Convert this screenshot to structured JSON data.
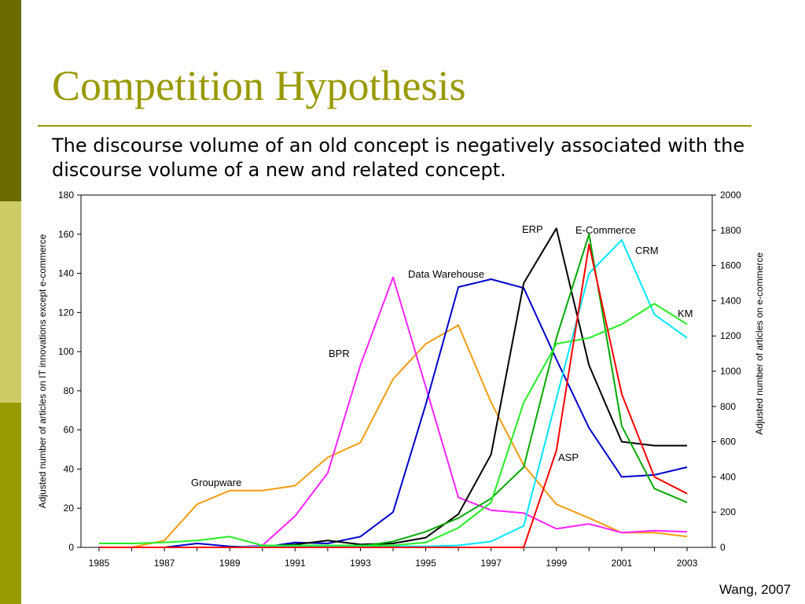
{
  "slide": {
    "title": "Competition Hypothesis",
    "text": "The discourse volume of an old concept is negatively associated with the discourse volume of a new and related concept.",
    "citation": "Wang, 2007"
  },
  "colors": {
    "accent": "#999900",
    "stripe_dark": "#6b6b00",
    "stripe_light": "#cccc66"
  },
  "chart_data": {
    "type": "line",
    "x": [
      1985,
      1986,
      1987,
      1988,
      1989,
      1990,
      1991,
      1992,
      1993,
      1994,
      1995,
      1996,
      1997,
      1998,
      1999,
      2000,
      2001,
      2002,
      2003
    ],
    "x_tick_labels": [
      "1985",
      "1987",
      "1989",
      "1991",
      "1993",
      "1995",
      "1997",
      "1999",
      "2001",
      "2003"
    ],
    "ylabel": "Adjusted number of articles on IT innovations except e-commerce",
    "y2label": "Adjusted number of articles on e-commerce",
    "ylim": [
      0,
      180
    ],
    "y_ticks": [
      0,
      20,
      40,
      60,
      80,
      100,
      120,
      140,
      160,
      180
    ],
    "y2lim": [
      0,
      2000
    ],
    "y2_ticks": [
      0,
      200,
      400,
      600,
      800,
      1000,
      1200,
      1400,
      1600,
      1800,
      2000
    ],
    "grid": false,
    "series": [
      {
        "name": "Groupware",
        "axis": "left",
        "color": "#f39c12",
        "values": [
          0,
          0,
          3.5,
          22,
          29,
          29,
          31.5,
          46,
          53.5,
          86,
          104,
          113.5,
          74,
          42,
          22,
          15,
          7.5,
          7.5,
          5.5
        ]
      },
      {
        "name": "BPR",
        "axis": "left",
        "color": "#ff22ff",
        "values": [
          0,
          0,
          0,
          0,
          0,
          1,
          16,
          38,
          93,
          138,
          82,
          25.5,
          19,
          17.5,
          9.5,
          12,
          7.5,
          8.5,
          8
        ]
      },
      {
        "name": "Data Warehouse",
        "axis": "left",
        "color": "#0000cc",
        "values": [
          0,
          0,
          0,
          2,
          0.5,
          0,
          2.5,
          2,
          5.5,
          18,
          73,
          133,
          137,
          132.5,
          96,
          61,
          36,
          37,
          41
        ]
      },
      {
        "name": "ERP",
        "axis": "left",
        "color": "#000000",
        "values": [
          0,
          0,
          0,
          0,
          0,
          0.5,
          1.5,
          3.5,
          1.5,
          2,
          5,
          17,
          47.5,
          135,
          163,
          93,
          54,
          52,
          52
        ]
      },
      {
        "name": "ASP",
        "axis": "left",
        "color": "#00aa00",
        "values": [
          0,
          0,
          0,
          0,
          0,
          0,
          0,
          1,
          0.5,
          3,
          8,
          15,
          25,
          41,
          107,
          160,
          62,
          30,
          23
        ]
      },
      {
        "name": "CRM",
        "axis": "left",
        "color": "#00e5ff",
        "values": [
          0,
          0,
          0,
          0,
          0,
          0.5,
          0.5,
          0.5,
          0.5,
          0.5,
          0.5,
          1,
          3,
          11,
          76,
          140,
          157,
          119,
          107
        ]
      },
      {
        "name": "KM",
        "axis": "left",
        "color": "#22ee22",
        "values": [
          2,
          2,
          2.5,
          3.5,
          5.5,
          1,
          1,
          1,
          1,
          1,
          2.5,
          10,
          23,
          74,
          104,
          107,
          114,
          124.5,
          114
        ]
      },
      {
        "name": "E-Commerce",
        "axis": "right",
        "color": "#ff0000",
        "values": [
          0,
          0,
          0,
          0,
          0,
          0,
          0,
          0,
          0,
          0,
          0,
          0,
          0,
          0,
          550,
          1720,
          870,
          400,
          305
        ]
      }
    ],
    "annotations": [
      {
        "text": "Groupware",
        "series": "Groupware"
      },
      {
        "text": "BPR",
        "series": "BPR"
      },
      {
        "text": "Data Warehouse",
        "series": "Data Warehouse"
      },
      {
        "text": "ERP",
        "series": "ERP"
      },
      {
        "text": "E-Commerce",
        "series": "E-Commerce"
      },
      {
        "text": "CRM",
        "series": "CRM"
      },
      {
        "text": "KM",
        "series": "KM"
      },
      {
        "text": "ASP",
        "series": "ASP"
      }
    ]
  }
}
